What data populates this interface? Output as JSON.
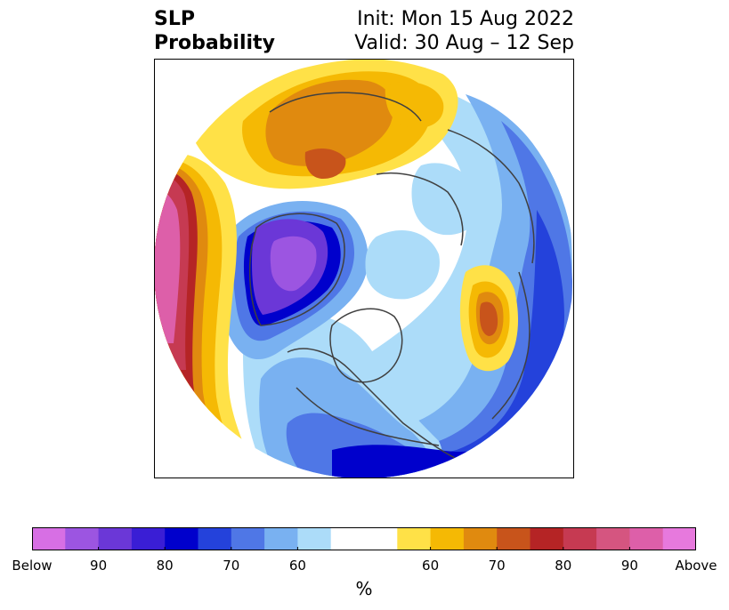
{
  "header": {
    "title_line1": "SLP",
    "title_line2": "Probability",
    "init": "Init: Mon 15 Aug 2022",
    "valid": "Valid: 30 Aug – 12 Sep"
  },
  "legend": {
    "unit": "%",
    "ticks": [
      {
        "label": "Below",
        "pos": 0
      },
      {
        "label": "90",
        "pos": 2
      },
      {
        "label": "80",
        "pos": 4
      },
      {
        "label": "70",
        "pos": 6
      },
      {
        "label": "60",
        "pos": 8
      },
      {
        "label": "60",
        "pos": 12
      },
      {
        "label": "70",
        "pos": 14
      },
      {
        "label": "80",
        "pos": 16
      },
      {
        "label": "90",
        "pos": 18
      },
      {
        "label": "Above",
        "pos": 20
      }
    ],
    "colors": [
      "#d76fe4",
      "#9c55e1",
      "#6b37d7",
      "#3a1ed5",
      "#0000cc",
      "#2442db",
      "#4f77e6",
      "#79b1f1",
      "#acdcf9",
      "#ffffff",
      "#ffffff",
      "#ffe147",
      "#f5b904",
      "#e08a0f",
      "#c8541b",
      "#b52425",
      "#c63a52",
      "#d55580",
      "#dd5fa9",
      "#e779dd"
    ]
  },
  "map": {
    "projection": "north-polar-stereographic",
    "palette": {
      "below_blue_light": "#acdcf9",
      "below_blue_mid": "#79b1f1",
      "below_blue": "#4f77e6",
      "below_blue_dark": "#2442db",
      "below_navy": "#0000cc",
      "below_indigo": "#3a1ed5",
      "below_violet": "#6b37d7",
      "below_purple": "#9c55e1",
      "above_yellow": "#ffe147",
      "above_gold": "#f5b904",
      "above_orange": "#e08a0f",
      "above_rust": "#c8541b",
      "above_red": "#b52425",
      "above_crimson": "#c63a52",
      "above_rose": "#d55580",
      "above_pink": "#dd5fa9"
    }
  }
}
